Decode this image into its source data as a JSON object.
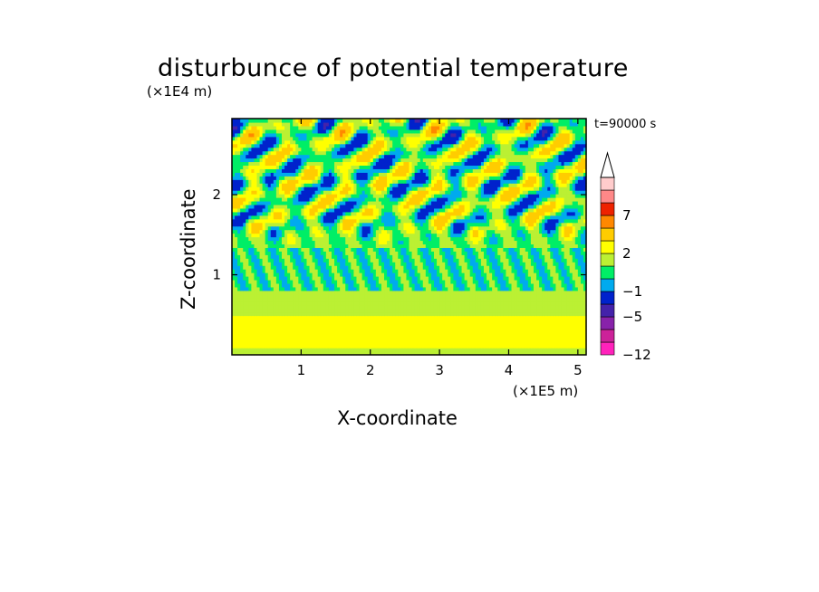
{
  "chart_data": {
    "type": "heatmap",
    "title": "disturbunce of potential temperature",
    "xlabel": "X-coordinate",
    "ylabel": "Z-coordinate",
    "x_unit": "(×1E5 m)",
    "y_unit": "(×1E4 m)",
    "annotation": "t=90000 s",
    "xlim": [
      0,
      5.12
    ],
    "ylim": [
      0,
      2.95
    ],
    "x_ticks": [
      1,
      2,
      3,
      4,
      5
    ],
    "y_ticks": [
      1,
      2
    ],
    "colorbar": {
      "levels": [
        -12,
        -9,
        -7,
        -5,
        -3,
        -1,
        0,
        1,
        2,
        3,
        5,
        7,
        9,
        12
      ],
      "labeled_ticks": [
        -12,
        -5,
        -1,
        2,
        7
      ],
      "colors": [
        "#ff22bb",
        "#cc2299",
        "#8822aa",
        "#4422aa",
        "#0022cc",
        "#00aaee",
        "#00ee66",
        "#bbf033",
        "#ffff00",
        "#ffcc00",
        "#ff8800",
        "#ee2200",
        "#ff8888",
        "#ffcccc"
      ]
    },
    "field_description_layers": [
      {
        "z_range": [
          0.0,
          0.1
        ],
        "typical_value": 1.5
      },
      {
        "z_range": [
          0.1,
          0.5
        ],
        "typical_value": 2.5
      },
      {
        "z_range": [
          0.5,
          0.8
        ],
        "typical_value": 1.5
      },
      {
        "z_range": [
          0.8,
          1.35
        ],
        "typical_value": 0.5
      },
      {
        "z_range": [
          1.35,
          2.95
        ],
        "typical_value": 1.0,
        "note": "oscillating bands from -5 to 7"
      }
    ]
  }
}
